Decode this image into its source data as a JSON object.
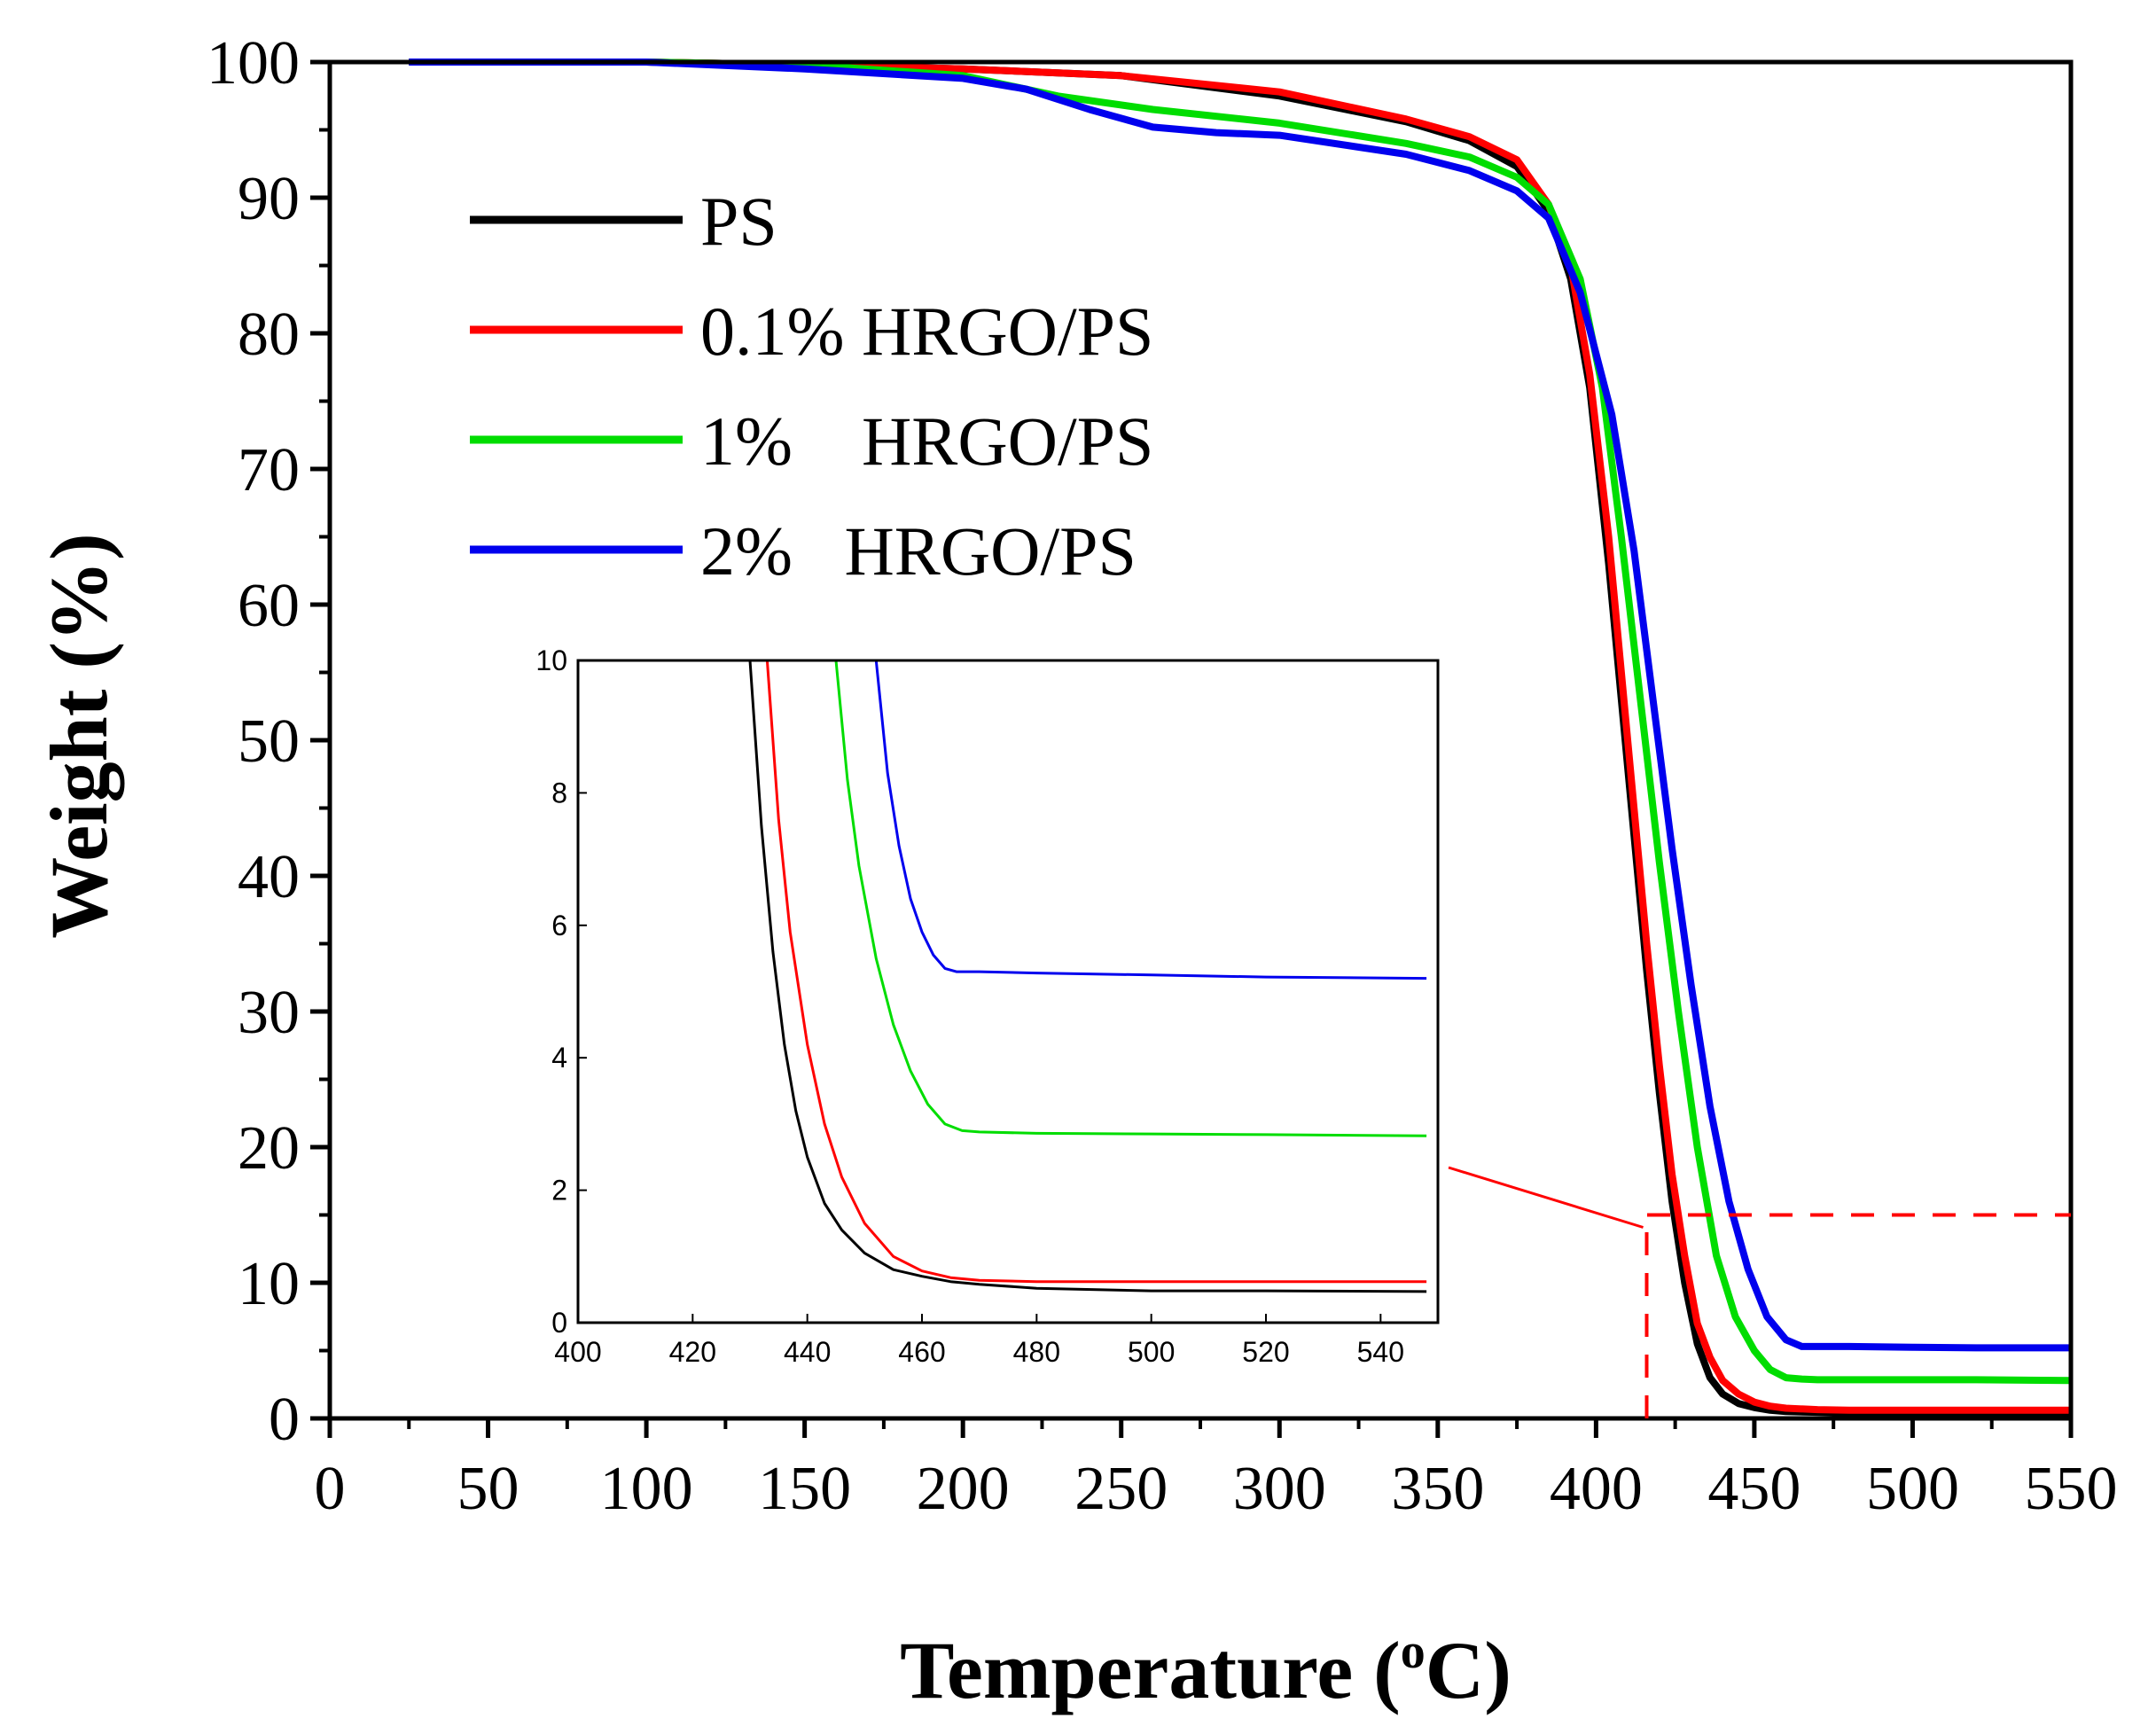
{
  "chart_data": [
    {
      "name": "main",
      "type": "line",
      "title": "",
      "xlabel": "Temperature (",
      "xlabel_unit_sup": "o",
      "xlabel_unit": "C)",
      "ylabel": "Weight  (%)",
      "xlim": [
        0,
        550
      ],
      "ylim": [
        0,
        100
      ],
      "xticks": [
        "0",
        "50",
        "100",
        "150",
        "200",
        "250",
        "300",
        "350",
        "400",
        "450",
        "500",
        "550"
      ],
      "yticks": [
        "0",
        "10",
        "20",
        "30",
        "40",
        "50",
        "60",
        "70",
        "80",
        "90",
        "100"
      ],
      "legend_position": "upper-left",
      "series": [
        {
          "name": "PS",
          "legend_label": "PS",
          "color": "#000000",
          "x": [
            25,
            100,
            150,
            200,
            250,
            300,
            340,
            360,
            375,
            385,
            392,
            398,
            404,
            408,
            412,
            416,
            420,
            424,
            428,
            432,
            436,
            440,
            445,
            450,
            455,
            460,
            470,
            480,
            500,
            520,
            550
          ],
          "y": [
            100,
            100,
            99.8,
            99.5,
            99,
            97.5,
            95.6,
            94.2,
            92.3,
            89,
            84,
            76,
            63,
            53,
            43,
            33,
            24,
            16,
            10,
            5.5,
            3,
            1.8,
            1.1,
            0.8,
            0.6,
            0.5,
            0.45,
            0.4,
            0.4,
            0.4,
            0.4
          ]
        },
        {
          "name": "0.1% HRGO/PS",
          "legend_label": "0.1% HRGO/PS",
          "color": "#ff0000",
          "x": [
            25,
            100,
            150,
            200,
            250,
            300,
            340,
            360,
            375,
            385,
            392,
            398,
            404,
            408,
            412,
            416,
            420,
            424,
            428,
            432,
            436,
            440,
            445,
            450,
            455,
            460,
            470,
            480,
            500,
            520,
            550
          ],
          "y": [
            100,
            100,
            99.8,
            99.5,
            99,
            97.8,
            95.8,
            94.5,
            92.8,
            89.5,
            85,
            77,
            65,
            55,
            45,
            35,
            26,
            18,
            12,
            7,
            4.5,
            2.8,
            1.8,
            1.2,
            0.9,
            0.75,
            0.65,
            0.6,
            0.6,
            0.6,
            0.6
          ]
        },
        {
          "name": "1% HRGO/PS",
          "legend_label": "1%    HRGO/PS",
          "color": "#00dd00",
          "x": [
            25,
            100,
            150,
            200,
            230,
            260,
            300,
            340,
            360,
            375,
            385,
            395,
            402,
            408,
            414,
            420,
            426,
            432,
            438,
            444,
            450,
            455,
            460,
            465,
            470,
            480,
            500,
            520,
            550
          ],
          "y": [
            100,
            100,
            99.8,
            99,
            97.5,
            96.5,
            95.5,
            94,
            93,
            91.5,
            89.5,
            84,
            76,
            65,
            53,
            41,
            30,
            20,
            12,
            7.5,
            5,
            3.6,
            3,
            2.9,
            2.85,
            2.85,
            2.85,
            2.85,
            2.8
          ]
        },
        {
          "name": "2% HRGO/PS",
          "legend_label": "2%   HRGO/PS",
          "color": "#0000ee",
          "x": [
            25,
            100,
            150,
            200,
            220,
            240,
            260,
            280,
            300,
            340,
            360,
            375,
            385,
            395,
            405,
            412,
            418,
            424,
            430,
            436,
            442,
            448,
            454,
            460,
            465,
            470,
            480,
            500,
            520,
            550
          ],
          "y": [
            100,
            100,
            99.5,
            98.8,
            98,
            96.5,
            95.2,
            94.8,
            94.6,
            93.2,
            92,
            90.5,
            88.5,
            83,
            74,
            64,
            53,
            42,
            32,
            23,
            16,
            11,
            7.5,
            5.8,
            5.3,
            5.3,
            5.3,
            5.25,
            5.2,
            5.2
          ]
        }
      ]
    },
    {
      "name": "inset",
      "type": "line",
      "xlim": [
        400,
        550
      ],
      "ylim": [
        0,
        10
      ],
      "xticks": [
        "400",
        "420",
        "440",
        "460",
        "480",
        "500",
        "520",
        "540"
      ],
      "yticks": [
        "0",
        "2",
        "4",
        "6",
        "8",
        "10"
      ],
      "zoom_region": {
        "x": [
          416,
          550
        ],
        "y": [
          0,
          15
        ]
      },
      "series": [
        {
          "name": "PS",
          "color": "#000000",
          "x": [
            430,
            432,
            434,
            436,
            438,
            440,
            443,
            446,
            450,
            455,
            460,
            465,
            470,
            480,
            500,
            520,
            548
          ],
          "y": [
            10,
            7.5,
            5.6,
            4.2,
            3.2,
            2.5,
            1.8,
            1.4,
            1.05,
            0.8,
            0.7,
            0.62,
            0.58,
            0.52,
            0.48,
            0.48,
            0.47
          ]
        },
        {
          "name": "0.1% HRGO/PS",
          "color": "#ff0000",
          "x": [
            433,
            435,
            437,
            440,
            443,
            446,
            450,
            455,
            460,
            465,
            470,
            480,
            500,
            520,
            548
          ],
          "y": [
            10,
            7.6,
            5.9,
            4.2,
            3.0,
            2.2,
            1.5,
            1.0,
            0.78,
            0.68,
            0.64,
            0.62,
            0.62,
            0.62,
            0.62
          ]
        },
        {
          "name": "1% HRGO/PS",
          "color": "#00dd00",
          "x": [
            445,
            447,
            449,
            452,
            455,
            458,
            461,
            464,
            467,
            470,
            480,
            500,
            520,
            548
          ],
          "y": [
            10,
            8.2,
            6.9,
            5.5,
            4.5,
            3.8,
            3.3,
            3.0,
            2.9,
            2.88,
            2.86,
            2.85,
            2.84,
            2.82
          ]
        },
        {
          "name": "2% HRGO/PS",
          "color": "#0000ee",
          "x": [
            452,
            454,
            456,
            458,
            460,
            462,
            464,
            466,
            470,
            480,
            500,
            520,
            548
          ],
          "y": [
            10,
            8.3,
            7.2,
            6.4,
            5.9,
            5.55,
            5.35,
            5.3,
            5.3,
            5.28,
            5.25,
            5.22,
            5.2
          ]
        }
      ]
    }
  ]
}
